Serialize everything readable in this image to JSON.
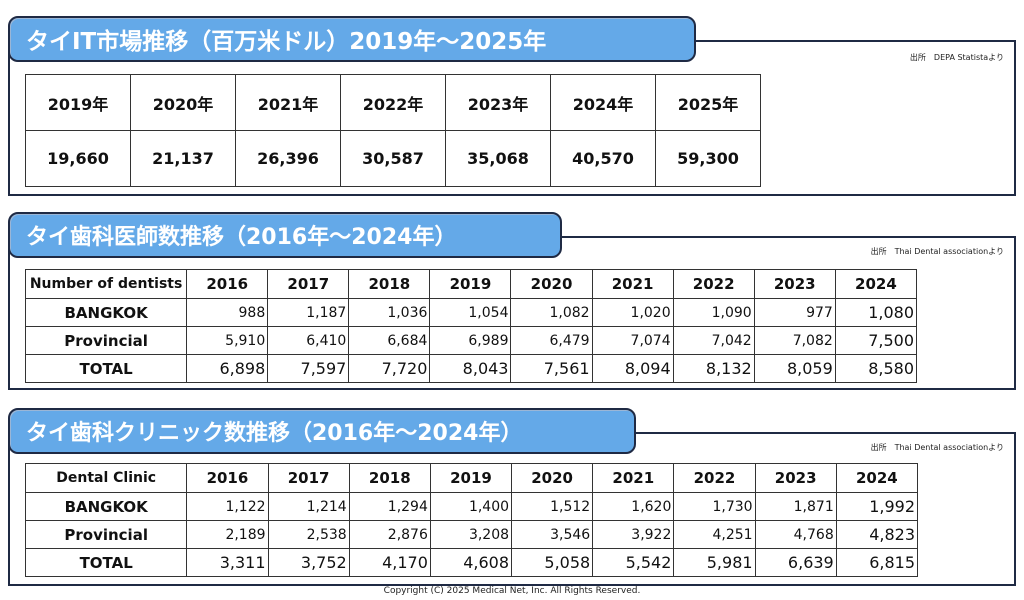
{
  "market": {
    "title": "タイIT市場推移（百万米ドル）2019年～2025年",
    "source": "出所　DEPA Statistaより",
    "years": [
      "2019年",
      "2020年",
      "2021年",
      "2022年",
      "2023年",
      "2024年",
      "2025年"
    ],
    "values": [
      "19,660",
      "21,137",
      "26,396",
      "30,587",
      "35,068",
      "40,570",
      "59,300"
    ]
  },
  "dentists": {
    "title": "タイ歯科医師数推移（2016年～2024年）",
    "source": "出所　Thai Dental associationより",
    "corner": "Number of dentists",
    "years": [
      "2016",
      "2017",
      "2018",
      "2019",
      "2020",
      "2021",
      "2022",
      "2023",
      "2024"
    ],
    "rows": [
      {
        "label": "BANGKOK",
        "values": [
          "988",
          "1,187",
          "1,036",
          "1,054",
          "1,082",
          "1,020",
          "1,090",
          "977",
          "1,080"
        ]
      },
      {
        "label": "Provincial",
        "values": [
          "5,910",
          "6,410",
          "6,684",
          "6,989",
          "6,479",
          "7,074",
          "7,042",
          "7,082",
          "7,500"
        ]
      },
      {
        "label": "TOTAL",
        "values": [
          "6,898",
          "7,597",
          "7,720",
          "8,043",
          "7,561",
          "8,094",
          "8,132",
          "8,059",
          "8,580"
        ]
      }
    ]
  },
  "clinics": {
    "title": "タイ歯科クリニック数推移（2016年～2024年）",
    "source": "出所　Thai Dental associationより",
    "corner": "Dental Clinic",
    "years": [
      "2016",
      "2017",
      "2018",
      "2019",
      "2020",
      "2021",
      "2022",
      "2023",
      "2024"
    ],
    "rows": [
      {
        "label": "BANGKOK",
        "values": [
          "1,122",
          "1,214",
          "1,294",
          "1,400",
          "1,512",
          "1,620",
          "1,730",
          "1,871",
          "1,992"
        ]
      },
      {
        "label": "Provincial",
        "values": [
          "2,189",
          "2,538",
          "2,876",
          "3,208",
          "3,546",
          "3,922",
          "4,251",
          "4,768",
          "4,823"
        ]
      },
      {
        "label": "TOTAL",
        "values": [
          "3,311",
          "3,752",
          "4,170",
          "4,608",
          "5,058",
          "5,542",
          "5,981",
          "6,639",
          "6,815"
        ]
      }
    ]
  },
  "footer": {
    "copyright": "Copyright (C) 2025 Medical Net, Inc. All Rights Reserved."
  }
}
